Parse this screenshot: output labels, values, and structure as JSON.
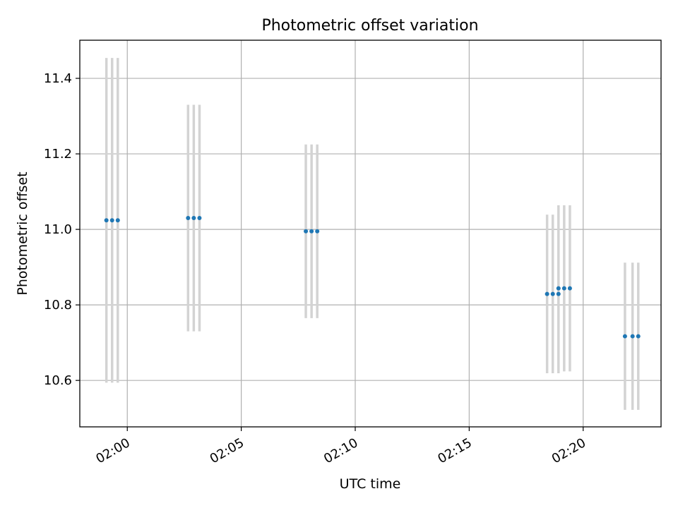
{
  "chart_data": {
    "type": "scatter",
    "title": "Photometric offset variation",
    "xlabel": "UTC time",
    "ylabel": "Photometric offset",
    "x_ticks": [
      "02:00",
      "02:05",
      "02:10",
      "02:15",
      "02:20"
    ],
    "y_ticks": [
      "10.6",
      "10.8",
      "11.0",
      "11.2",
      "11.4"
    ],
    "grid": true,
    "legend": "none",
    "series": [
      {
        "x": [
          "01:59:05",
          "01:59:20",
          "01:59:35",
          "02:02:40",
          "02:02:55",
          "02:03:10",
          "02:07:50",
          "02:08:05",
          "02:08:20",
          "02:18:25",
          "02:18:40",
          "02:18:55",
          "02:18:55",
          "02:19:10",
          "02:19:25",
          "02:21:50",
          "02:22:10",
          "02:22:25"
        ],
        "y": [
          11.024,
          11.024,
          11.024,
          11.03,
          11.03,
          11.03,
          10.995,
          10.995,
          10.995,
          10.829,
          10.829,
          10.829,
          10.844,
          10.844,
          10.844,
          10.717,
          10.717,
          10.717
        ],
        "yerr": [
          0.43,
          0.43,
          0.43,
          0.3,
          0.3,
          0.3,
          0.23,
          0.23,
          0.23,
          0.21,
          0.21,
          0.21,
          0.22,
          0.22,
          0.22,
          0.195,
          0.195,
          0.195
        ]
      }
    ],
    "colors": {
      "point": "#1f77b4",
      "errorbar": "#d3d3d3",
      "grid": "#b0b0b0",
      "axis": "#000000"
    }
  }
}
